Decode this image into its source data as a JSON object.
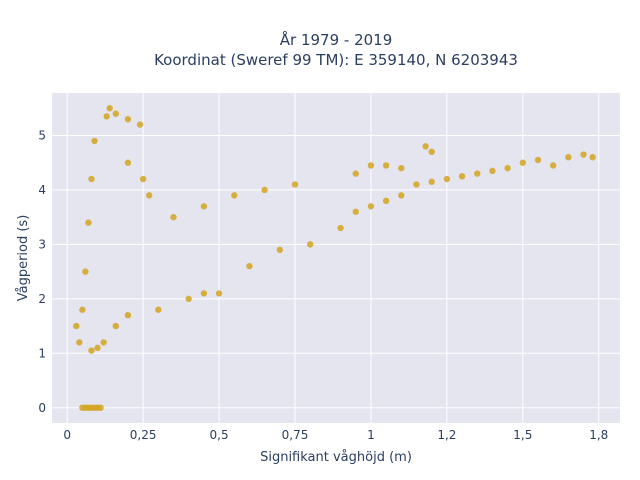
{
  "chart_data": {
    "type": "scatter",
    "title_line1": "År 1979 - 2019",
    "title_line2": "Koordinat (Sweref 99 TM): E 359140, N 6203943",
    "xlabel": "Signifikant våghöjd (m)",
    "ylabel": "Vågperiod (s)",
    "xlim": [
      -0.05,
      1.82
    ],
    "ylim": [
      -0.28,
      5.78
    ],
    "xticks": [
      0,
      0.25,
      0.5,
      0.75,
      1,
      1.25,
      1.5,
      1.75
    ],
    "xtick_labels": [
      "0",
      "0,25",
      "0,5",
      "0,75",
      "1",
      "1,2",
      "1,5",
      "1,8"
    ],
    "yticks": [
      0,
      1,
      2,
      3,
      4,
      5
    ],
    "ytick_labels": [
      "0",
      "1",
      "2",
      "3",
      "4",
      "5"
    ],
    "grid": true,
    "colors": {
      "marker": "#d4a520",
      "plot_bg": "#e5e5f0",
      "grid": "#ffffff",
      "text": "#2a3f5f"
    },
    "series": [
      {
        "values": [
          {
            "x": 0.05,
            "y": 0.0
          },
          {
            "x": 0.06,
            "y": 0.0
          },
          {
            "x": 0.07,
            "y": 0.0
          },
          {
            "x": 0.08,
            "y": 0.0
          },
          {
            "x": 0.09,
            "y": 0.0
          },
          {
            "x": 0.1,
            "y": 0.0
          },
          {
            "x": 0.11,
            "y": 0.0
          },
          {
            "x": 0.03,
            "y": 1.5
          },
          {
            "x": 0.04,
            "y": 1.2
          },
          {
            "x": 0.05,
            "y": 1.8
          },
          {
            "x": 0.06,
            "y": 2.5
          },
          {
            "x": 0.07,
            "y": 3.4
          },
          {
            "x": 0.08,
            "y": 4.2
          },
          {
            "x": 0.08,
            "y": 1.05
          },
          {
            "x": 0.1,
            "y": 1.1
          },
          {
            "x": 0.12,
            "y": 1.2
          },
          {
            "x": 0.09,
            "y": 4.9
          },
          {
            "x": 0.13,
            "y": 5.35
          },
          {
            "x": 0.14,
            "y": 5.5
          },
          {
            "x": 0.16,
            "y": 5.4
          },
          {
            "x": 0.2,
            "y": 5.3
          },
          {
            "x": 0.24,
            "y": 5.2
          },
          {
            "x": 0.2,
            "y": 4.5
          },
          {
            "x": 0.25,
            "y": 4.2
          },
          {
            "x": 0.27,
            "y": 3.9
          },
          {
            "x": 0.16,
            "y": 1.5
          },
          {
            "x": 0.2,
            "y": 1.7
          },
          {
            "x": 0.3,
            "y": 1.8
          },
          {
            "x": 0.4,
            "y": 2.0
          },
          {
            "x": 0.45,
            "y": 2.1
          },
          {
            "x": 0.5,
            "y": 2.1
          },
          {
            "x": 0.35,
            "y": 3.5
          },
          {
            "x": 0.45,
            "y": 3.7
          },
          {
            "x": 0.55,
            "y": 3.9
          },
          {
            "x": 0.65,
            "y": 4.0
          },
          {
            "x": 0.75,
            "y": 4.1
          },
          {
            "x": 0.6,
            "y": 2.6
          },
          {
            "x": 0.7,
            "y": 2.9
          },
          {
            "x": 0.8,
            "y": 3.0
          },
          {
            "x": 0.9,
            "y": 3.3
          },
          {
            "x": 0.95,
            "y": 3.6
          },
          {
            "x": 1.0,
            "y": 3.7
          },
          {
            "x": 1.05,
            "y": 3.8
          },
          {
            "x": 1.1,
            "y": 3.9
          },
          {
            "x": 0.95,
            "y": 4.3
          },
          {
            "x": 1.0,
            "y": 4.45
          },
          {
            "x": 1.05,
            "y": 4.45
          },
          {
            "x": 1.1,
            "y": 4.4
          },
          {
            "x": 1.15,
            "y": 4.1
          },
          {
            "x": 1.2,
            "y": 4.15
          },
          {
            "x": 1.25,
            "y": 4.2
          },
          {
            "x": 1.3,
            "y": 4.25
          },
          {
            "x": 1.35,
            "y": 4.3
          },
          {
            "x": 1.4,
            "y": 4.35
          },
          {
            "x": 1.45,
            "y": 4.4
          },
          {
            "x": 1.18,
            "y": 4.8
          },
          {
            "x": 1.2,
            "y": 4.7
          },
          {
            "x": 1.5,
            "y": 4.5
          },
          {
            "x": 1.55,
            "y": 4.55
          },
          {
            "x": 1.6,
            "y": 4.45
          },
          {
            "x": 1.65,
            "y": 4.6
          },
          {
            "x": 1.7,
            "y": 4.65
          },
          {
            "x": 1.73,
            "y": 4.6
          }
        ]
      }
    ]
  }
}
